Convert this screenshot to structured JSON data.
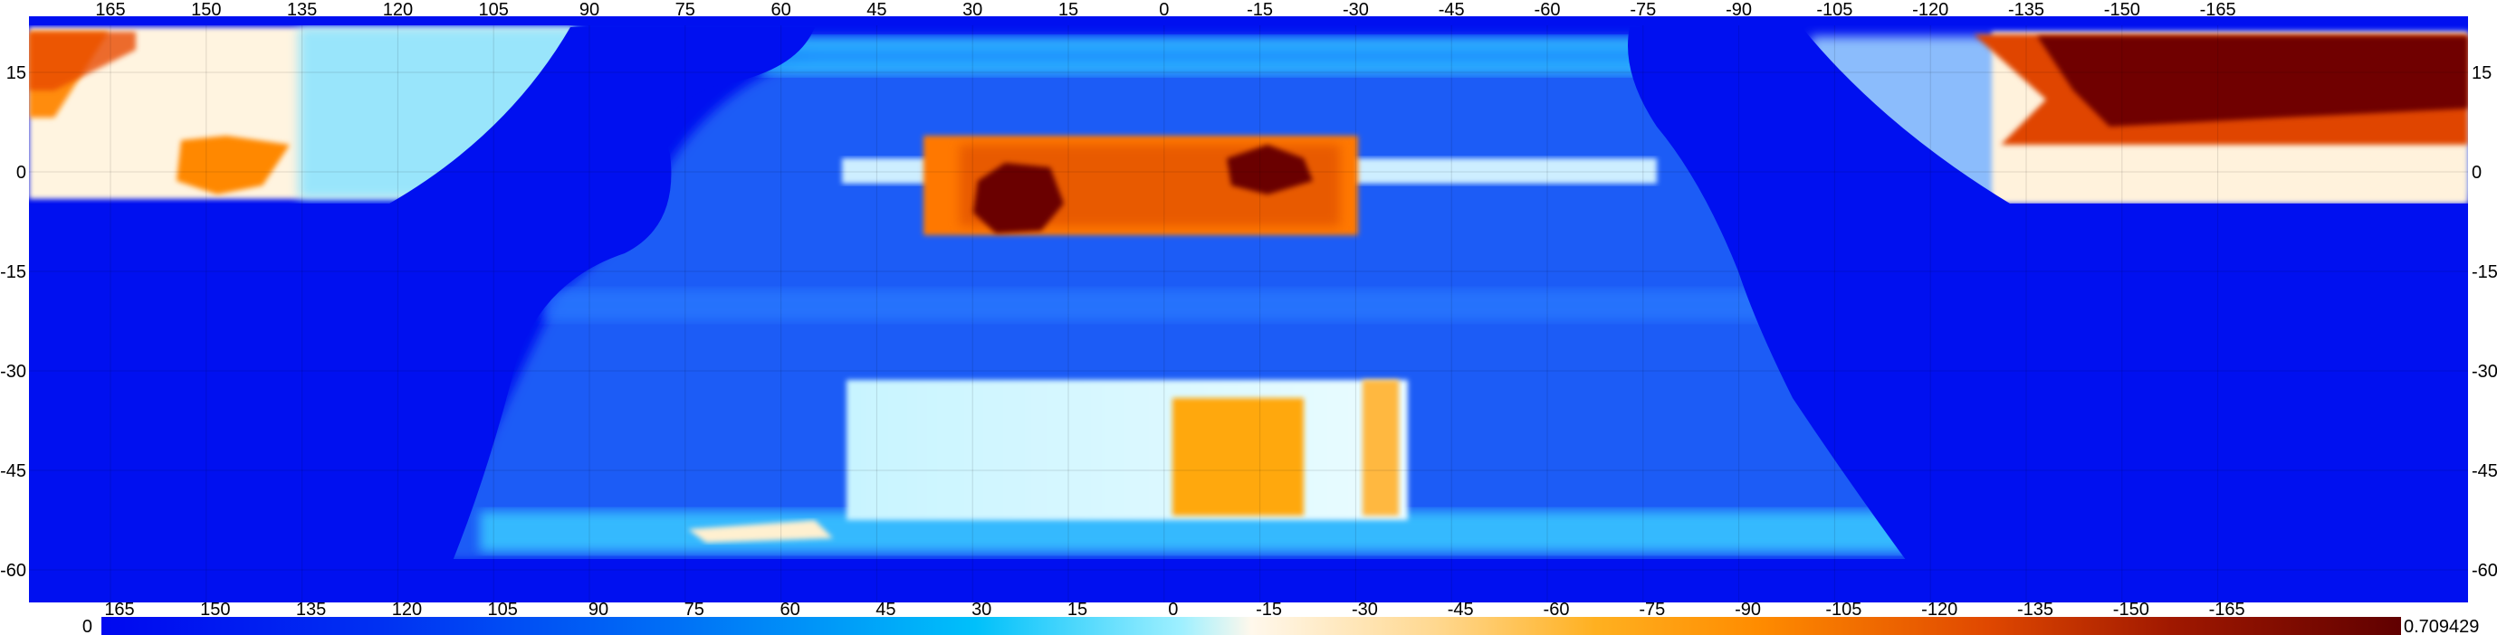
{
  "map": {
    "lon_ticks_top": [
      "165",
      "150",
      "135",
      "120",
      "105",
      "90",
      "75",
      "60",
      "45",
      "30",
      "15",
      "0",
      "-15",
      "-30",
      "-45",
      "-60",
      "-75",
      "-90",
      "-105",
      "-120",
      "-135",
      "-150",
      "-165"
    ],
    "lat_ticks_left": [
      "15",
      "0",
      "-15",
      "-30",
      "-45",
      "-60"
    ],
    "lat_ticks_right": [
      "15",
      "0",
      "-15",
      "-30",
      "-45",
      "-60"
    ],
    "background_color": "#0010f0",
    "grid": true
  },
  "colorbar": {
    "min_label": "0",
    "max_label": "0.709429",
    "tick_labels": [
      "165",
      "150",
      "135",
      "120",
      "105",
      "90",
      "75",
      "60",
      "45",
      "30",
      "15",
      "0",
      "-15",
      "-30",
      "-45",
      "-60",
      "-75",
      "-90",
      "-105",
      "-120",
      "-135",
      "-150",
      "-165"
    ],
    "colors": [
      "#0008f0",
      "#0050f4",
      "#00a8f8",
      "#40e0ff",
      "#fff8e8",
      "#ffd060",
      "#ffa000",
      "#ff6000",
      "#b02000",
      "#600000"
    ]
  }
}
